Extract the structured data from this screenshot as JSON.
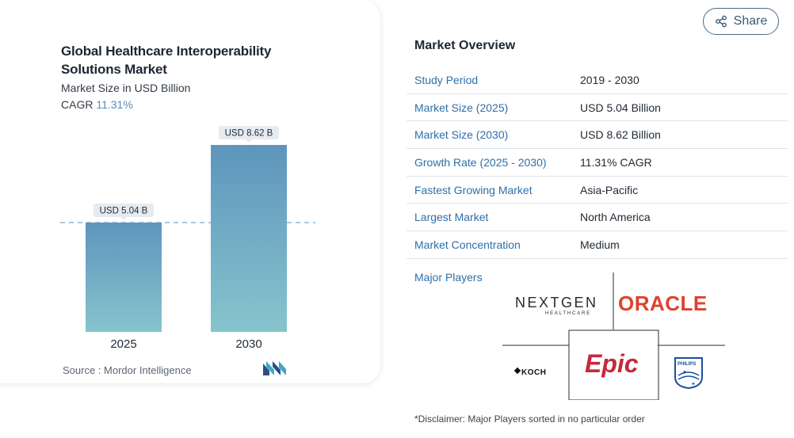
{
  "share": {
    "label": "Share",
    "icon": "share-icon"
  },
  "chart_data": {
    "type": "bar",
    "title": "Global Healthcare Interoperability Solutions Market",
    "subtitle": "Market Size in USD Billion",
    "cagr_label": "CAGR",
    "cagr_value": "11.31%",
    "categories": [
      "2025",
      "2030"
    ],
    "values": [
      5.04,
      8.62
    ],
    "data_labels": [
      "USD 5.04 B",
      "USD 8.62 B"
    ],
    "ylim": [
      0,
      10
    ],
    "grid": false,
    "colors": {
      "bar_top": "#5e95bd",
      "bar_bottom": "#86c4cd",
      "label_bg": "#e6ebef",
      "dash": "#5e8fb8"
    }
  },
  "source": {
    "label": "Source :",
    "name": "Mordor Intelligence"
  },
  "overview": {
    "title": "Market Overview",
    "rows": [
      {
        "key": "Study Period",
        "value": "2019 - 2030"
      },
      {
        "key": "Market Size (2025)",
        "value": "USD 5.04 Billion"
      },
      {
        "key": "Market Size (2030)",
        "value": "USD 8.62 Billion"
      },
      {
        "key": "Growth Rate (2025 - 2030)",
        "value": "11.31% CAGR"
      },
      {
        "key": "Fastest Growing Market",
        "value": "Asia-Pacific"
      },
      {
        "key": "Largest Market",
        "value": "North America"
      },
      {
        "key": "Market Concentration",
        "value": "Medium"
      }
    ]
  },
  "players": {
    "label": "Major Players",
    "logos": [
      {
        "name": "NEXTGEN",
        "sub": "HEALTHCARE"
      },
      {
        "name": "ORACLE"
      },
      {
        "name": "KOCH"
      },
      {
        "name": "Epic"
      },
      {
        "name": "PHILIPS"
      }
    ]
  },
  "disclaimer": "*Disclaimer: Major Players sorted in no particular order"
}
